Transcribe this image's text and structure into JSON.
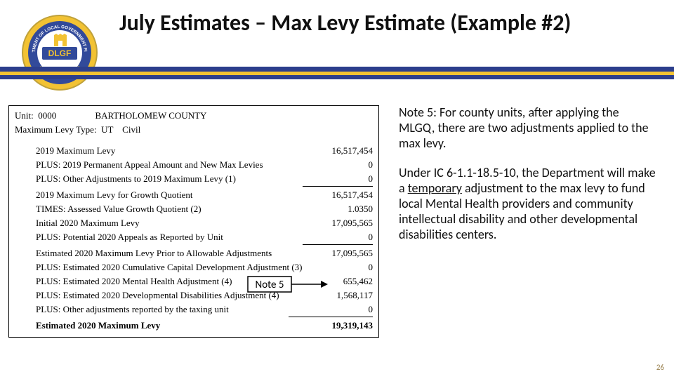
{
  "title": "July Estimates – Max Levy Estimate (Example #2)",
  "seal": {
    "outer_color": "#324a9a",
    "gold_color": "#f2c233",
    "band_text_color": "#ffffff",
    "label": "DLGF",
    "state": "INDIANA"
  },
  "stripes": {
    "blue": "#2c3e8c",
    "gold": "#f2c233"
  },
  "levy": {
    "unit_code": "0000",
    "unit_name": "BARTHOLOMEW COUNTY",
    "type_code": "UT",
    "type_desc": "Civil",
    "rows": [
      {
        "label": "2019 Maximum Levy",
        "value": "16,517,454",
        "bold": false,
        "rule_before": false
      },
      {
        "label": "PLUS: 2019 Permanent Appeal Amount and New Max Levies",
        "value": "0",
        "bold": false,
        "rule_before": false
      },
      {
        "label": "PLUS: Other Adjustments to 2019 Maximum Levy (1)",
        "value": "0",
        "bold": false,
        "rule_before": false
      },
      {
        "label": "2019 Maximum Levy for Growth Quotient",
        "value": "16,517,454",
        "bold": false,
        "rule_before": true
      },
      {
        "label": "TIMES: Assessed Value Growth Quotient (2)",
        "value": "1.0350",
        "bold": false,
        "rule_before": false
      },
      {
        "label": "Initial 2020 Maximum Levy",
        "value": "17,095,565",
        "bold": false,
        "rule_before": false
      },
      {
        "label": "PLUS: Potential 2020 Appeals as Reported by Unit",
        "value": "0",
        "bold": false,
        "rule_before": false
      },
      {
        "label": "Estimated 2020 Maximum Levy Prior to Allowable Adjustments",
        "value": "17,095,565",
        "bold": false,
        "rule_before": true
      },
      {
        "label": "PLUS: Estimated 2020 Cumulative Capital Development Adjustment (3)",
        "value": "0",
        "bold": false,
        "rule_before": false
      },
      {
        "label": "PLUS: Estimated 2020 Mental Health Adjustment (4)",
        "value": "655,462",
        "bold": false,
        "rule_before": false
      },
      {
        "label": "PLUS: Estimated 2020 Developmental Disabilities Adjustment (4)",
        "value": "1,568,117",
        "bold": false,
        "rule_before": false
      },
      {
        "label": "PLUS: Other adjustments reported by the taxing unit",
        "value": "0",
        "bold": false,
        "rule_before": false
      },
      {
        "label": "Estimated 2020 Maximum Levy",
        "value": "19,319,143",
        "bold": true,
        "rule_before": true,
        "rule_long": true
      }
    ]
  },
  "callout": {
    "label": "Note 5"
  },
  "notes": {
    "p1_a": "Note 5: For county units, after applying the MLGQ, there are two adjustments applied to the max levy.",
    "p2_a": "Under IC 6-1.1-18.5-10, the Department will make a ",
    "p2_u": "temporary",
    "p2_b": " adjustment to the max levy to fund local Mental Health providers and community intellectual disability and other developmental disabilities centers."
  },
  "page_number": "26"
}
